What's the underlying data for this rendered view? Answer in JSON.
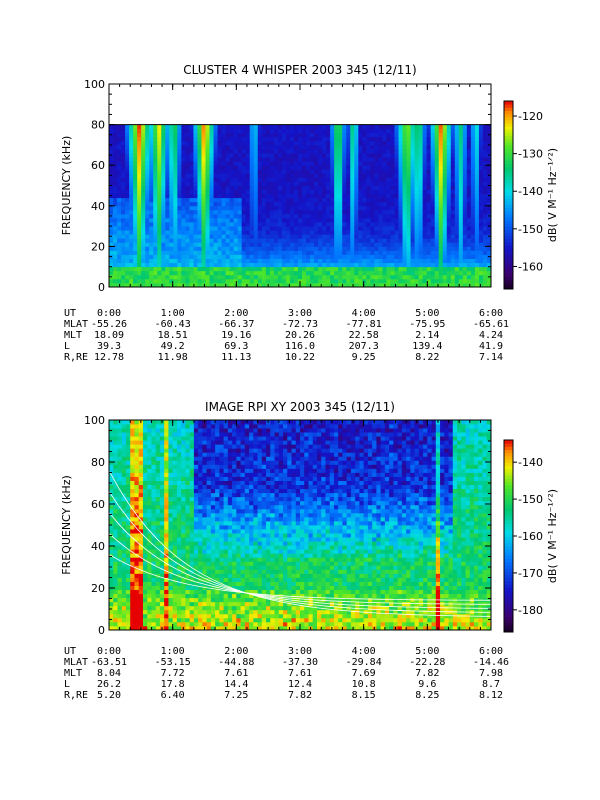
{
  "chart_data": [
    {
      "type": "heatmap",
      "title": "CLUSTER 4 WHISPER 2003 345 (12/11)",
      "ylabel": "FREQUENCY (kHz)",
      "ylim": [
        0,
        100
      ],
      "yticks": [
        "0",
        "20",
        "40",
        "60",
        "80",
        "100"
      ],
      "data_top_khz": 80,
      "xticks": [
        "0:00",
        "1:00",
        "2:00",
        "3:00",
        "4:00",
        "5:00",
        "6:00"
      ],
      "colorbar": {
        "label": "dB( V M⁻¹ Hz⁻¹ᐟ²)",
        "range": [
          -166,
          -116
        ],
        "ticks": [
          "-120",
          "-130",
          "-140",
          "-150",
          "-160"
        ]
      },
      "ephemeris": [
        {
          "label": "UT",
          "values": [
            "0:00",
            "1:00",
            "2:00",
            "3:00",
            "4:00",
            "5:00",
            "6:00"
          ]
        },
        {
          "label": "MLAT",
          "values": [
            "-55.26",
            "-60.43",
            "-66.37",
            "-72.73",
            "-77.81",
            "-75.95",
            "-65.61"
          ]
        },
        {
          "label": "MLT",
          "values": [
            "18.09",
            "18.51",
            "19.16",
            "20.26",
            "22.58",
            "2.14",
            "4.24"
          ]
        },
        {
          "label": "L",
          "values": [
            "39.3",
            "49.2",
            "69.3",
            "116.0",
            "207.3",
            "139.4",
            "41.9"
          ]
        },
        {
          "label": "R,RE",
          "values": [
            "12.78",
            "11.98",
            "11.13",
            "10.22",
            "9.25",
            "8.22",
            "7.14"
          ]
        }
      ]
    },
    {
      "type": "heatmap",
      "title": "IMAGE RPI XY 2003 345 (12/11)",
      "ylabel": "FREQUENCY (kHz)",
      "ylim": [
        0,
        100
      ],
      "yticks": [
        "0",
        "20",
        "40",
        "60",
        "80",
        "100"
      ],
      "xticks": [
        "0:00",
        "1:00",
        "2:00",
        "3:00",
        "4:00",
        "5:00",
        "6:00"
      ],
      "colorbar": {
        "label": "dB( V M⁻¹ Hz⁻¹ᐟ²)",
        "range": [
          -186,
          -134
        ],
        "ticks": [
          "-140",
          "-150",
          "-160",
          "-170",
          "-180"
        ]
      },
      "ephemeris": [
        {
          "label": "UT",
          "values": [
            "0:00",
            "1:00",
            "2:00",
            "3:00",
            "4:00",
            "5:00",
            "6:00"
          ]
        },
        {
          "label": "MLAT",
          "values": [
            "-63.51",
            "-53.15",
            "-44.88",
            "-37.30",
            "-29.84",
            "-22.28",
            "-14.46"
          ]
        },
        {
          "label": "MLT",
          "values": [
            "8.04",
            "7.72",
            "7.61",
            "7.61",
            "7.69",
            "7.82",
            "7.98"
          ]
        },
        {
          "label": "L",
          "values": [
            "26.2",
            "17.8",
            "14.4",
            "12.4",
            "10.8",
            "9.6",
            "8.7"
          ]
        },
        {
          "label": "R,RE",
          "values": [
            "5.20",
            "6.40",
            "7.25",
            "7.82",
            "8.15",
            "8.25",
            "8.12"
          ]
        }
      ]
    }
  ]
}
